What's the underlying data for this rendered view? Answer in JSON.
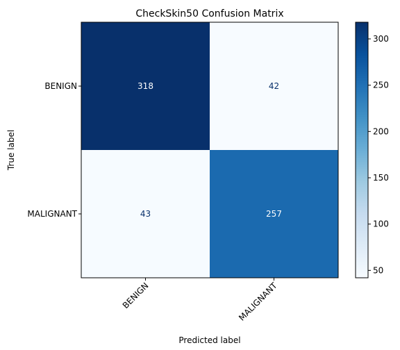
{
  "chart_data": {
    "type": "heatmap",
    "title": "CheckSkin50 Confusion Matrix",
    "xlabel": "Predicted label",
    "ylabel": "True label",
    "x_categories": [
      "BENIGN",
      "MALIGNANT"
    ],
    "y_categories": [
      "BENIGN",
      "MALIGNANT"
    ],
    "values": [
      [
        318,
        42
      ],
      [
        43,
        257
      ]
    ],
    "colormap": "Blues",
    "colorbar": {
      "range": [
        42,
        318
      ],
      "ticks": [
        50,
        100,
        150,
        200,
        250,
        300
      ]
    },
    "colors": {
      "low": "#f7fbff",
      "high": "#08306b",
      "text_on_dark": "#ffffff",
      "text_on_light": "#08306b"
    }
  }
}
